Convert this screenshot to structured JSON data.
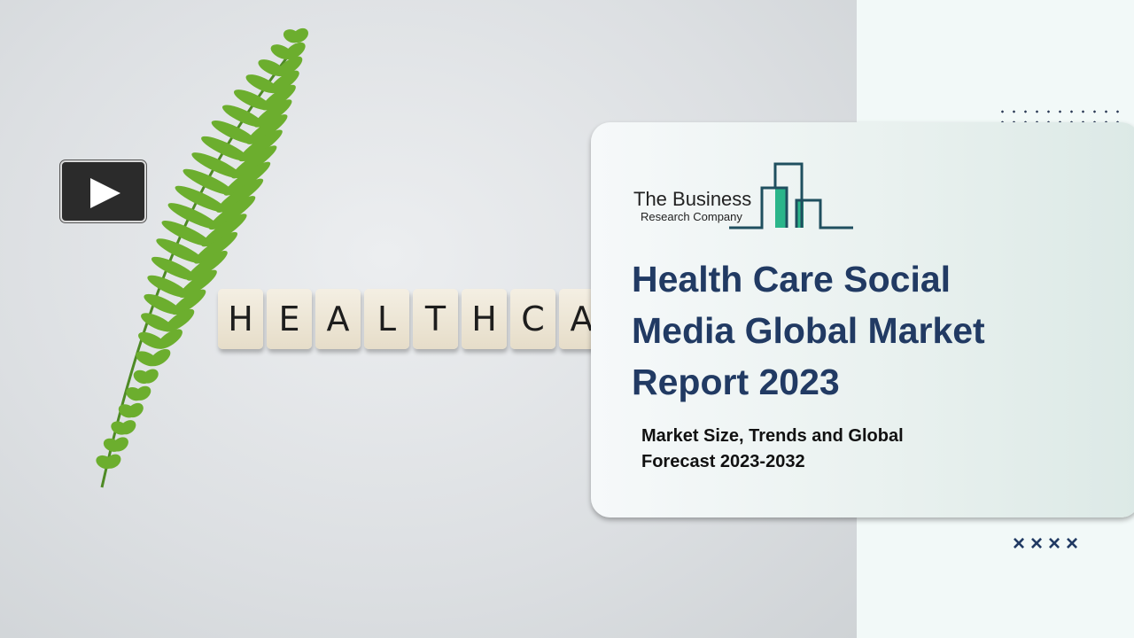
{
  "photo": {
    "tiles": [
      "H",
      "E",
      "A",
      "L",
      "T",
      "H",
      "C",
      "A"
    ]
  },
  "logo": {
    "line1": "The Business",
    "line2": "Research Company",
    "colors": {
      "outline": "#1f4f5f",
      "fill": "#2bb58a"
    }
  },
  "title": "Health Care Social Media Global Market Report 2023",
  "subtitle": "Market Size, Trends and Global Forecast 2023-2032",
  "decor": {
    "crosses": "××××"
  },
  "colors": {
    "title": "#213a63",
    "background": "#f2f9f8"
  }
}
